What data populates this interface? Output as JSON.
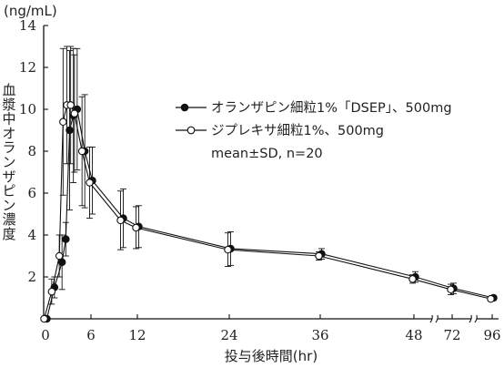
{
  "chart_data": {
    "type": "line",
    "unit_label": "(ng/mL)",
    "ylabel": "血漿中オランザピン濃度",
    "xlabel": "投与後時間(hr)",
    "x_ticks": [
      "0",
      "6",
      "12",
      "24",
      "36",
      "48",
      "72",
      "96"
    ],
    "y_ticks": [
      "2",
      "4",
      "6",
      "8",
      "10",
      "12",
      "14"
    ],
    "ylim": [
      0,
      14
    ],
    "x_axis_break": "broken axis between 48 and 72 and between 72 and 96",
    "legend_position": "right, middle",
    "legend_note": "mean±SD, n=20",
    "series": [
      {
        "name": "オランザピン細粒1%「DSEP」、500mg",
        "marker": "filled-circle",
        "points": [
          {
            "x": 0,
            "y": 0,
            "sd": 0
          },
          {
            "x": 1,
            "y": 1.5,
            "sd": 0.5
          },
          {
            "x": 2,
            "y": 2.7,
            "sd": 1.3
          },
          {
            "x": 2.5,
            "y": 3.8,
            "sd": 0.8
          },
          {
            "x": 3,
            "y": 9.0,
            "sd": 3.8
          },
          {
            "x": 3.5,
            "y": 9.7,
            "sd": 3.2
          },
          {
            "x": 4,
            "y": 10.0,
            "sd": 2.9
          },
          {
            "x": 5,
            "y": 8.0,
            "sd": 2.7
          },
          {
            "x": 6,
            "y": 6.6,
            "sd": 1.6
          },
          {
            "x": 10,
            "y": 4.8,
            "sd": 1.4
          },
          {
            "x": 12,
            "y": 4.4,
            "sd": 1.0
          },
          {
            "x": 24,
            "y": 3.35,
            "sd": 0.8
          },
          {
            "x": 36,
            "y": 3.1,
            "sd": 0.25
          },
          {
            "x": 48,
            "y": 2.0,
            "sd": 0.25
          },
          {
            "x": 72,
            "y": 1.45,
            "sd": 0.25
          },
          {
            "x": 96,
            "y": 1.0,
            "sd": 0.1
          }
        ]
      },
      {
        "name": "ジプレキサ細粒1%、500mg",
        "marker": "open-circle",
        "points": [
          {
            "x": 0,
            "y": 0,
            "sd": 0
          },
          {
            "x": 1,
            "y": 1.3,
            "sd": 0.6
          },
          {
            "x": 2,
            "y": 3.0,
            "sd": 1.0
          },
          {
            "x": 2.5,
            "y": 9.4,
            "sd": 3.5
          },
          {
            "x": 3,
            "y": 10.2,
            "sd": 2.8
          },
          {
            "x": 3.5,
            "y": 10.2,
            "sd": 2.8
          },
          {
            "x": 4,
            "y": 9.8,
            "sd": 2.8
          },
          {
            "x": 5,
            "y": 8.0,
            "sd": 2.6
          },
          {
            "x": 6,
            "y": 6.5,
            "sd": 1.7
          },
          {
            "x": 10,
            "y": 4.7,
            "sd": 1.4
          },
          {
            "x": 12,
            "y": 4.35,
            "sd": 1.0
          },
          {
            "x": 24,
            "y": 3.3,
            "sd": 0.8
          },
          {
            "x": 36,
            "y": 3.0,
            "sd": 0.2
          },
          {
            "x": 48,
            "y": 1.9,
            "sd": 0.2
          },
          {
            "x": 72,
            "y": 1.4,
            "sd": 0.25
          },
          {
            "x": 96,
            "y": 0.95,
            "sd": 0.1
          }
        ]
      }
    ]
  }
}
